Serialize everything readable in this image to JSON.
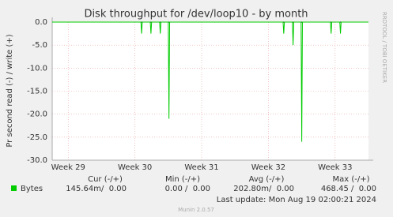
{
  "chart_data": {
    "type": "line",
    "title": "Disk throughput for /dev/loop10 - by month",
    "ylabel": "Pr second read (-) / write (+)",
    "side_label": "RRDTOOL / TOBI OETIKER",
    "xlim": [
      28.76,
      33.5
    ],
    "xticks": [
      {
        "value": 29,
        "label": "Week 29"
      },
      {
        "value": 30,
        "label": "Week 30"
      },
      {
        "value": 31,
        "label": "Week 31"
      },
      {
        "value": 32,
        "label": "Week 32"
      },
      {
        "value": 33,
        "label": "Week 33"
      }
    ],
    "ylim": [
      -30,
      0
    ],
    "yticks": [
      {
        "value": 0,
        "label": "0.0"
      },
      {
        "value": -5,
        "label": "-5.0"
      },
      {
        "value": -10,
        "label": "-10.0"
      },
      {
        "value": -15,
        "label": "-15.0"
      },
      {
        "value": -20,
        "label": "-20.0"
      },
      {
        "value": -25,
        "label": "-25.0"
      },
      {
        "value": -30,
        "label": "-30.0"
      }
    ],
    "grid": true,
    "series": [
      {
        "name": "Bytes",
        "color": "#00cc00",
        "x": [
          28.76,
          30.09,
          30.1,
          30.11,
          30.23,
          30.24,
          30.25,
          30.37,
          30.38,
          30.39,
          30.5,
          30.51,
          30.52,
          32.22,
          32.23,
          32.24,
          32.36,
          32.37,
          32.38,
          32.49,
          32.5,
          32.51,
          32.93,
          32.94,
          32.95,
          33.07,
          33.08,
          33.09,
          33.5
        ],
        "values": [
          0,
          0,
          -2.5,
          0,
          0,
          -2.5,
          0,
          0,
          -2.5,
          0,
          0,
          -21,
          0,
          0,
          -2.5,
          0,
          0,
          -5,
          0,
          0,
          -26,
          0,
          0,
          -2.5,
          0,
          0,
          -2.5,
          0,
          0
        ]
      }
    ],
    "legend_stats": {
      "headers": [
        "Cur (-/+)",
        "Min (-/+)",
        "Avg (-/+)",
        "Max (-/+)"
      ],
      "values": [
        "145.64m/  0.00",
        "0.00 /  0.00",
        "202.80m/  0.00",
        "468.45 /  0.00"
      ]
    },
    "last_update": "Last update: Mon Aug 19 02:00:21 2024",
    "footer": "Munin 2.0.57"
  }
}
